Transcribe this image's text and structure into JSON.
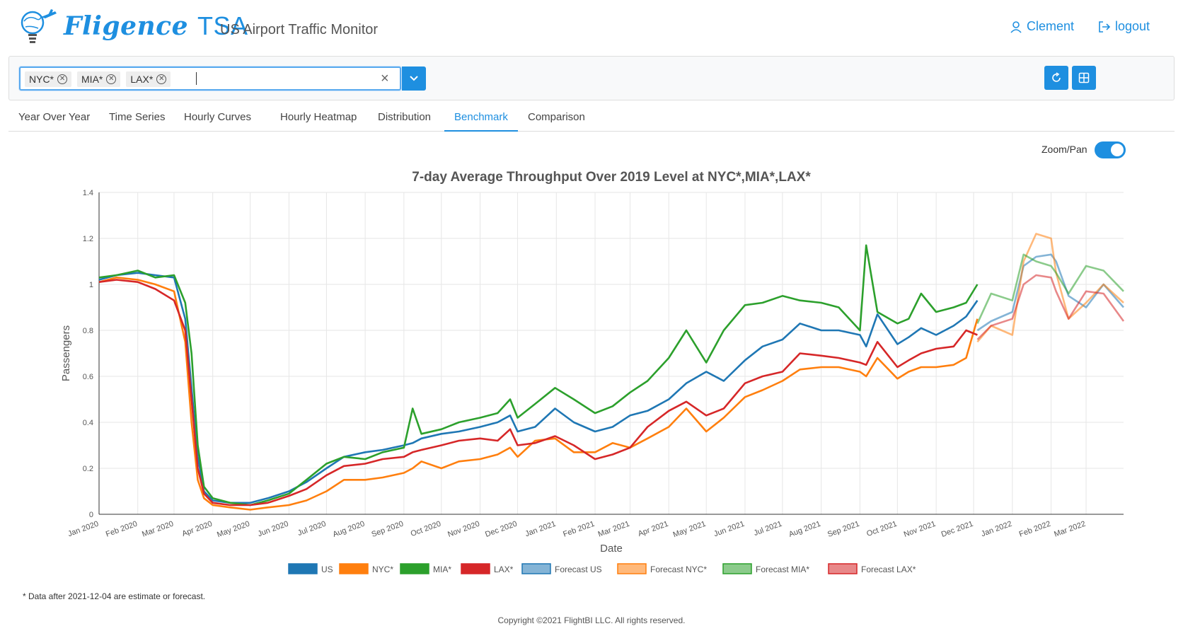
{
  "header": {
    "brand_name": "Fligence",
    "brand_suffix": "TSA",
    "subtitle": "US Airport Traffic Monitor",
    "user_label": "Clement",
    "logout_label": "logout"
  },
  "filter": {
    "chips": [
      "NYC*",
      "MIA*",
      "LAX*"
    ],
    "clear_symbol": "×"
  },
  "tabs": [
    {
      "label": "Year Over Year",
      "active": false
    },
    {
      "label": "Time Series",
      "active": false
    },
    {
      "label": "Hourly Curves",
      "active": false
    },
    {
      "label": "Hourly Heatmap",
      "active": false
    },
    {
      "label": "Distribution",
      "active": false
    },
    {
      "label": "Benchmark",
      "active": true
    },
    {
      "label": "Comparison",
      "active": false
    }
  ],
  "zoom_pan_label": "Zoom/Pan",
  "icons": {
    "logo": "lightbulb-plane-logo-icon",
    "user": "user-icon",
    "logout": "logout-icon",
    "refresh": "refresh-icon",
    "layout": "grid-layout-icon",
    "dropdown": "chevron-down-icon"
  },
  "colors": {
    "accent": "#1e8fe0",
    "US": "#1f77b4",
    "NYC": "#ff7f0e",
    "MIA": "#2ca02c",
    "LAX": "#d62728"
  },
  "chart_data": {
    "type": "line",
    "title": "7-day Average Throughput Over 2019 Level at NYC*,MIA*,LAX*",
    "xlabel": "Date",
    "ylabel": "Passengers",
    "ylim": [
      0,
      1.4
    ],
    "yticks": [
      "0",
      "0.2",
      "0.4",
      "0.6",
      "0.8",
      "1",
      "1.2",
      "1.4"
    ],
    "xticks": [
      "Jan 2020",
      "Feb 2020",
      "Mar 2020",
      "Apr 2020",
      "May 2020",
      "Jun 2020",
      "Jul 2020",
      "Aug 2020",
      "Sep 2020",
      "Oct 2020",
      "Nov 2020",
      "Dec 2020",
      "Jan 2021",
      "Feb 2021",
      "Mar 2021",
      "Apr 2021",
      "May 2021",
      "Jun 2021",
      "Jul 2021",
      "Aug 2021",
      "Sep 2021",
      "Oct 2021",
      "Nov 2021",
      "Dec 2021",
      "Jan 2022",
      "Feb 2022",
      "Mar 2022"
    ],
    "grid": true,
    "legend_position": "bottom",
    "x": [
      "2020-01-01",
      "2020-01-15",
      "2020-02-01",
      "2020-02-15",
      "2020-03-01",
      "2020-03-10",
      "2020-03-15",
      "2020-03-20",
      "2020-03-25",
      "2020-04-01",
      "2020-04-15",
      "2020-05-01",
      "2020-05-15",
      "2020-06-01",
      "2020-06-15",
      "2020-07-01",
      "2020-07-15",
      "2020-08-01",
      "2020-08-15",
      "2020-09-01",
      "2020-09-08",
      "2020-09-15",
      "2020-10-01",
      "2020-10-15",
      "2020-11-01",
      "2020-11-15",
      "2020-11-25",
      "2020-12-01",
      "2020-12-15",
      "2020-12-31",
      "2021-01-15",
      "2021-02-01",
      "2021-02-15",
      "2021-03-01",
      "2021-03-15",
      "2021-04-01",
      "2021-04-15",
      "2021-05-01",
      "2021-05-15",
      "2021-06-01",
      "2021-06-15",
      "2021-07-01",
      "2021-07-15",
      "2021-08-01",
      "2021-08-15",
      "2021-09-01",
      "2021-09-06",
      "2021-09-15",
      "2021-10-01",
      "2021-10-10",
      "2021-10-20",
      "2021-11-01",
      "2021-11-15",
      "2021-11-25",
      "2021-12-04"
    ],
    "series": [
      {
        "name": "US",
        "values": [
          1.02,
          1.04,
          1.05,
          1.04,
          1.03,
          0.85,
          0.55,
          0.25,
          0.1,
          0.06,
          0.05,
          0.05,
          0.07,
          0.1,
          0.14,
          0.2,
          0.25,
          0.27,
          0.28,
          0.3,
          0.31,
          0.33,
          0.35,
          0.36,
          0.38,
          0.4,
          0.43,
          0.36,
          0.38,
          0.46,
          0.4,
          0.36,
          0.38,
          0.43,
          0.45,
          0.5,
          0.57,
          0.62,
          0.58,
          0.67,
          0.73,
          0.76,
          0.83,
          0.8,
          0.8,
          0.78,
          0.73,
          0.87,
          0.74,
          0.77,
          0.81,
          0.78,
          0.82,
          0.86,
          0.93
        ]
      },
      {
        "name": "NYC*",
        "values": [
          1.01,
          1.03,
          1.02,
          1.0,
          0.97,
          0.75,
          0.4,
          0.15,
          0.07,
          0.04,
          0.03,
          0.02,
          0.03,
          0.04,
          0.06,
          0.1,
          0.15,
          0.15,
          0.16,
          0.18,
          0.2,
          0.23,
          0.2,
          0.23,
          0.24,
          0.26,
          0.29,
          0.25,
          0.32,
          0.33,
          0.27,
          0.27,
          0.31,
          0.29,
          0.33,
          0.38,
          0.46,
          0.36,
          0.42,
          0.51,
          0.54,
          0.58,
          0.63,
          0.64,
          0.64,
          0.62,
          0.6,
          0.68,
          0.59,
          0.62,
          0.64,
          0.64,
          0.65,
          0.68,
          0.85
        ]
      },
      {
        "name": "MIA*",
        "values": [
          1.03,
          1.04,
          1.06,
          1.03,
          1.04,
          0.92,
          0.7,
          0.3,
          0.12,
          0.07,
          0.05,
          0.04,
          0.06,
          0.09,
          0.15,
          0.22,
          0.25,
          0.24,
          0.27,
          0.29,
          0.46,
          0.35,
          0.37,
          0.4,
          0.42,
          0.44,
          0.5,
          0.42,
          0.48,
          0.55,
          0.5,
          0.44,
          0.47,
          0.53,
          0.58,
          0.68,
          0.8,
          0.66,
          0.8,
          0.91,
          0.92,
          0.95,
          0.93,
          0.92,
          0.9,
          0.8,
          1.17,
          0.88,
          0.83,
          0.85,
          0.96,
          0.88,
          0.9,
          0.92,
          1.0
        ]
      },
      {
        "name": "LAX*",
        "values": [
          1.01,
          1.02,
          1.01,
          0.98,
          0.93,
          0.8,
          0.5,
          0.2,
          0.09,
          0.05,
          0.04,
          0.04,
          0.05,
          0.08,
          0.11,
          0.17,
          0.21,
          0.22,
          0.24,
          0.25,
          0.27,
          0.28,
          0.3,
          0.32,
          0.33,
          0.32,
          0.37,
          0.3,
          0.31,
          0.34,
          0.3,
          0.24,
          0.26,
          0.29,
          0.38,
          0.45,
          0.49,
          0.43,
          0.46,
          0.57,
          0.6,
          0.62,
          0.7,
          0.69,
          0.68,
          0.66,
          0.65,
          0.75,
          0.64,
          0.67,
          0.7,
          0.72,
          0.73,
          0.8,
          0.78
        ]
      }
    ],
    "forecast_x": [
      "2021-12-04",
      "2021-12-15",
      "2022-01-01",
      "2022-01-10",
      "2022-01-20",
      "2022-02-01",
      "2022-02-05",
      "2022-02-15",
      "2022-03-01",
      "2022-03-15",
      "2022-03-31"
    ],
    "forecast_series": [
      {
        "name": "Forecast US",
        "values": [
          0.8,
          0.84,
          0.88,
          1.08,
          1.12,
          1.13,
          1.1,
          0.95,
          0.9,
          1.0,
          0.9
        ]
      },
      {
        "name": "Forecast NYC*",
        "values": [
          0.75,
          0.82,
          0.78,
          1.1,
          1.22,
          1.2,
          1.05,
          0.85,
          0.92,
          1.0,
          0.92
        ]
      },
      {
        "name": "Forecast MIA*",
        "values": [
          0.83,
          0.96,
          0.93,
          1.13,
          1.1,
          1.08,
          1.05,
          0.96,
          1.08,
          1.06,
          0.97
        ]
      },
      {
        "name": "Forecast LAX*",
        "values": [
          0.76,
          0.82,
          0.85,
          1.0,
          1.04,
          1.03,
          0.97,
          0.85,
          0.97,
          0.96,
          0.84
        ]
      }
    ]
  },
  "footnote": "* Data after 2021-12-04 are estimate or forecast.",
  "copyright": "Copyright ©2021 FlightBI LLC. All rights reserved."
}
